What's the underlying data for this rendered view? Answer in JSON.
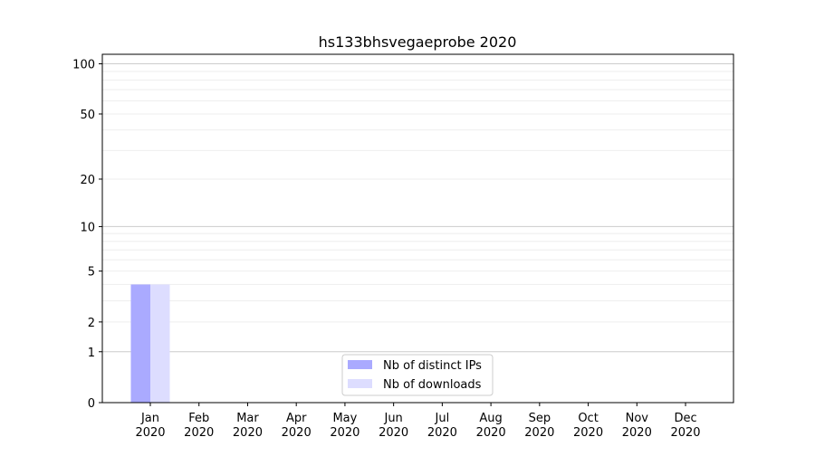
{
  "chart_data": {
    "type": "bar",
    "title": "hs133bhsvegaeprobe 2020",
    "xlabel": "",
    "ylabel": "",
    "yscale": "log(y+1)",
    "ylim": [
      0,
      114
    ],
    "yticks": [
      0,
      1,
      2,
      5,
      10,
      20,
      50,
      100
    ],
    "ytick_labels": [
      "0",
      "1",
      "2",
      "5",
      "10",
      "20",
      "50",
      "100"
    ],
    "grid": true,
    "legend_placement": "lower-center",
    "categories": [
      "Jan\n2020",
      "Feb\n2020",
      "Mar\n2020",
      "Apr\n2020",
      "May\n2020",
      "Jun\n2020",
      "Jul\n2020",
      "Aug\n2020",
      "Sep\n2020",
      "Oct\n2020",
      "Nov\n2020",
      "Dec\n2020"
    ],
    "series": [
      {
        "name": "Nb of distinct IPs",
        "color": "#aaaaff",
        "values": [
          4,
          0,
          0,
          0,
          0,
          0,
          0,
          0,
          0,
          0,
          0,
          0
        ]
      },
      {
        "name": "Nb of downloads",
        "color": "#ddddff",
        "values": [
          4,
          0,
          0,
          0,
          0,
          0,
          0,
          0,
          0,
          0,
          0,
          0
        ]
      }
    ]
  }
}
